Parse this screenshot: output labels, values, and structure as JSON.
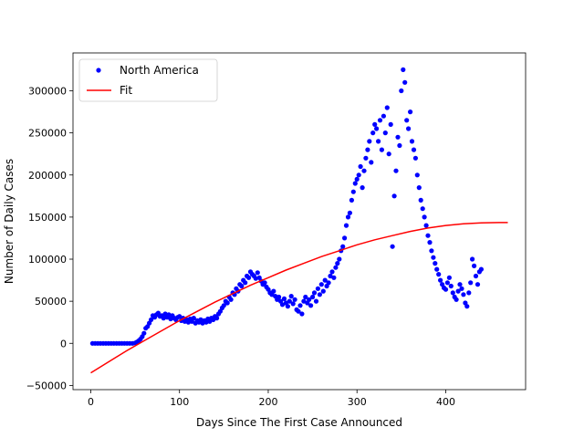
{
  "chart_data": {
    "type": "scatter",
    "xlabel": "Days Since The First Case Announced",
    "ylabel": "Number of Daily Cases",
    "xlim": [
      -20,
      490
    ],
    "ylim": [
      -55000,
      345000
    ],
    "xticks": [
      0,
      100,
      200,
      300,
      400
    ],
    "yticks": [
      -50000,
      0,
      50000,
      100000,
      150000,
      200000,
      250000,
      300000
    ],
    "legend": {
      "location": "upper-left"
    },
    "series": [
      {
        "name": "North America",
        "kind": "scatter",
        "color": "#0000ff",
        "points": [
          [
            2,
            0
          ],
          [
            5,
            0
          ],
          [
            8,
            0
          ],
          [
            11,
            0
          ],
          [
            14,
            0
          ],
          [
            17,
            0
          ],
          [
            20,
            0
          ],
          [
            23,
            0
          ],
          [
            26,
            0
          ],
          [
            29,
            0
          ],
          [
            32,
            0
          ],
          [
            35,
            0
          ],
          [
            38,
            0
          ],
          [
            41,
            0
          ],
          [
            44,
            0
          ],
          [
            47,
            0
          ],
          [
            50,
            500
          ],
          [
            52,
            1500
          ],
          [
            54,
            3000
          ],
          [
            56,
            5000
          ],
          [
            58,
            8000
          ],
          [
            60,
            12000
          ],
          [
            62,
            18000
          ],
          [
            64,
            20000
          ],
          [
            66,
            24000
          ],
          [
            68,
            28000
          ],
          [
            70,
            33000
          ],
          [
            72,
            31000
          ],
          [
            74,
            34000
          ],
          [
            76,
            36000
          ],
          [
            78,
            32000
          ],
          [
            80,
            33000
          ],
          [
            82,
            30000
          ],
          [
            84,
            35000
          ],
          [
            86,
            31000
          ],
          [
            88,
            34000
          ],
          [
            90,
            29000
          ],
          [
            92,
            33000
          ],
          [
            94,
            30000
          ],
          [
            96,
            28000
          ],
          [
            98,
            31000
          ],
          [
            100,
            32000
          ],
          [
            102,
            27000
          ],
          [
            104,
            30000
          ],
          [
            106,
            26000
          ],
          [
            108,
            28000
          ],
          [
            110,
            25000
          ],
          [
            112,
            29000
          ],
          [
            114,
            26000
          ],
          [
            116,
            30000
          ],
          [
            118,
            24000
          ],
          [
            120,
            27000
          ],
          [
            122,
            25000
          ],
          [
            124,
            28000
          ],
          [
            126,
            24000
          ],
          [
            128,
            27000
          ],
          [
            130,
            25000
          ],
          [
            132,
            29000
          ],
          [
            134,
            26000
          ],
          [
            136,
            30000
          ],
          [
            138,
            28000
          ],
          [
            140,
            32000
          ],
          [
            142,
            30000
          ],
          [
            144,
            35000
          ],
          [
            146,
            38000
          ],
          [
            148,
            42000
          ],
          [
            150,
            45000
          ],
          [
            152,
            50000
          ],
          [
            154,
            48000
          ],
          [
            156,
            55000
          ],
          [
            158,
            52000
          ],
          [
            160,
            60000
          ],
          [
            162,
            58000
          ],
          [
            164,
            65000
          ],
          [
            166,
            62000
          ],
          [
            168,
            70000
          ],
          [
            170,
            68000
          ],
          [
            172,
            75000
          ],
          [
            174,
            72000
          ],
          [
            176,
            80000
          ],
          [
            178,
            78000
          ],
          [
            180,
            85000
          ],
          [
            182,
            82000
          ],
          [
            184,
            80000
          ],
          [
            186,
            77000
          ],
          [
            188,
            84000
          ],
          [
            190,
            78000
          ],
          [
            192,
            74000
          ],
          [
            194,
            70000
          ],
          [
            196,
            72000
          ],
          [
            198,
            67000
          ],
          [
            200,
            64000
          ],
          [
            202,
            60000
          ],
          [
            204,
            58000
          ],
          [
            206,
            62000
          ],
          [
            208,
            56000
          ],
          [
            210,
            52000
          ],
          [
            212,
            55000
          ],
          [
            214,
            50000
          ],
          [
            216,
            46000
          ],
          [
            218,
            53000
          ],
          [
            220,
            48000
          ],
          [
            222,
            44000
          ],
          [
            224,
            50000
          ],
          [
            226,
            56000
          ],
          [
            228,
            47000
          ],
          [
            230,
            52000
          ],
          [
            232,
            40000
          ],
          [
            234,
            38000
          ],
          [
            236,
            45000
          ],
          [
            238,
            35000
          ],
          [
            240,
            50000
          ],
          [
            242,
            55000
          ],
          [
            244,
            48000
          ],
          [
            246,
            52000
          ],
          [
            248,
            45000
          ],
          [
            250,
            55000
          ],
          [
            252,
            60000
          ],
          [
            254,
            50000
          ],
          [
            256,
            65000
          ],
          [
            258,
            58000
          ],
          [
            260,
            70000
          ],
          [
            262,
            62000
          ],
          [
            264,
            75000
          ],
          [
            266,
            68000
          ],
          [
            268,
            72000
          ],
          [
            270,
            80000
          ],
          [
            272,
            85000
          ],
          [
            274,
            78000
          ],
          [
            276,
            90000
          ],
          [
            278,
            95000
          ],
          [
            280,
            100000
          ],
          [
            282,
            110000
          ],
          [
            284,
            115000
          ],
          [
            286,
            125000
          ],
          [
            288,
            140000
          ],
          [
            290,
            150000
          ],
          [
            292,
            155000
          ],
          [
            294,
            170000
          ],
          [
            296,
            180000
          ],
          [
            298,
            190000
          ],
          [
            300,
            195000
          ],
          [
            302,
            200000
          ],
          [
            304,
            210000
          ],
          [
            306,
            185000
          ],
          [
            308,
            205000
          ],
          [
            310,
            220000
          ],
          [
            312,
            230000
          ],
          [
            314,
            240000
          ],
          [
            316,
            215000
          ],
          [
            318,
            250000
          ],
          [
            320,
            260000
          ],
          [
            322,
            255000
          ],
          [
            324,
            240000
          ],
          [
            326,
            265000
          ],
          [
            328,
            230000
          ],
          [
            330,
            270000
          ],
          [
            332,
            250000
          ],
          [
            334,
            280000
          ],
          [
            336,
            225000
          ],
          [
            338,
            260000
          ],
          [
            340,
            115000
          ],
          [
            342,
            175000
          ],
          [
            344,
            205000
          ],
          [
            346,
            245000
          ],
          [
            348,
            235000
          ],
          [
            350,
            300000
          ],
          [
            352,
            325000
          ],
          [
            354,
            310000
          ],
          [
            356,
            265000
          ],
          [
            358,
            255000
          ],
          [
            360,
            275000
          ],
          [
            362,
            240000
          ],
          [
            364,
            230000
          ],
          [
            366,
            220000
          ],
          [
            368,
            200000
          ],
          [
            370,
            185000
          ],
          [
            372,
            170000
          ],
          [
            374,
            160000
          ],
          [
            376,
            150000
          ],
          [
            378,
            140000
          ],
          [
            380,
            128000
          ],
          [
            382,
            120000
          ],
          [
            384,
            110000
          ],
          [
            386,
            102000
          ],
          [
            388,
            95000
          ],
          [
            390,
            88000
          ],
          [
            392,
            82000
          ],
          [
            394,
            75000
          ],
          [
            396,
            70000
          ],
          [
            398,
            66000
          ],
          [
            400,
            64000
          ],
          [
            402,
            72000
          ],
          [
            404,
            78000
          ],
          [
            406,
            68000
          ],
          [
            408,
            60000
          ],
          [
            410,
            55000
          ],
          [
            412,
            52000
          ],
          [
            414,
            62000
          ],
          [
            416,
            70000
          ],
          [
            418,
            65000
          ],
          [
            420,
            58000
          ],
          [
            422,
            48000
          ],
          [
            424,
            44000
          ],
          [
            426,
            60000
          ],
          [
            428,
            72000
          ],
          [
            430,
            100000
          ],
          [
            432,
            92000
          ],
          [
            434,
            80000
          ],
          [
            436,
            70000
          ],
          [
            438,
            85000
          ],
          [
            440,
            88000
          ]
        ]
      },
      {
        "name": "Fit",
        "kind": "line",
        "color": "#ff0000",
        "points": [
          [
            0,
            -35000
          ],
          [
            20,
            -22000
          ],
          [
            40,
            -9000
          ],
          [
            60,
            3000
          ],
          [
            80,
            15000
          ],
          [
            100,
            27000
          ],
          [
            120,
            38000
          ],
          [
            140,
            49000
          ],
          [
            160,
            59000
          ],
          [
            180,
            69000
          ],
          [
            200,
            78000
          ],
          [
            220,
            87000
          ],
          [
            240,
            95000
          ],
          [
            260,
            103000
          ],
          [
            280,
            110000
          ],
          [
            300,
            117000
          ],
          [
            320,
            123000
          ],
          [
            340,
            128000
          ],
          [
            360,
            133000
          ],
          [
            380,
            137000
          ],
          [
            400,
            140000
          ],
          [
            420,
            142000
          ],
          [
            440,
            143000
          ],
          [
            460,
            143500
          ],
          [
            470,
            143500
          ]
        ]
      }
    ]
  }
}
